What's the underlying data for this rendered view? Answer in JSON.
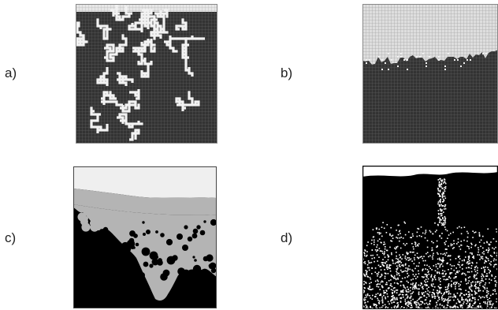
{
  "figure": {
    "panels": [
      {
        "label": "a)",
        "description_icon": "percolation-grid-light-paths-icon"
      },
      {
        "label": "b)",
        "description_icon": "percolation-grid-front-icon"
      },
      {
        "label": "c)",
        "description_icon": "continuum-invasion-icon"
      },
      {
        "label": "d)",
        "description_icon": "binary-fractal-invasion-icon"
      }
    ]
  },
  "colors": {
    "dark_grid": "#3a3a3a",
    "light_grid": "#d9d9d9",
    "path": "#f2f2f2",
    "black": "#000000",
    "mid_gray": "#b4b4b4",
    "pale_gray": "#efefef",
    "white": "#ffffff"
  }
}
